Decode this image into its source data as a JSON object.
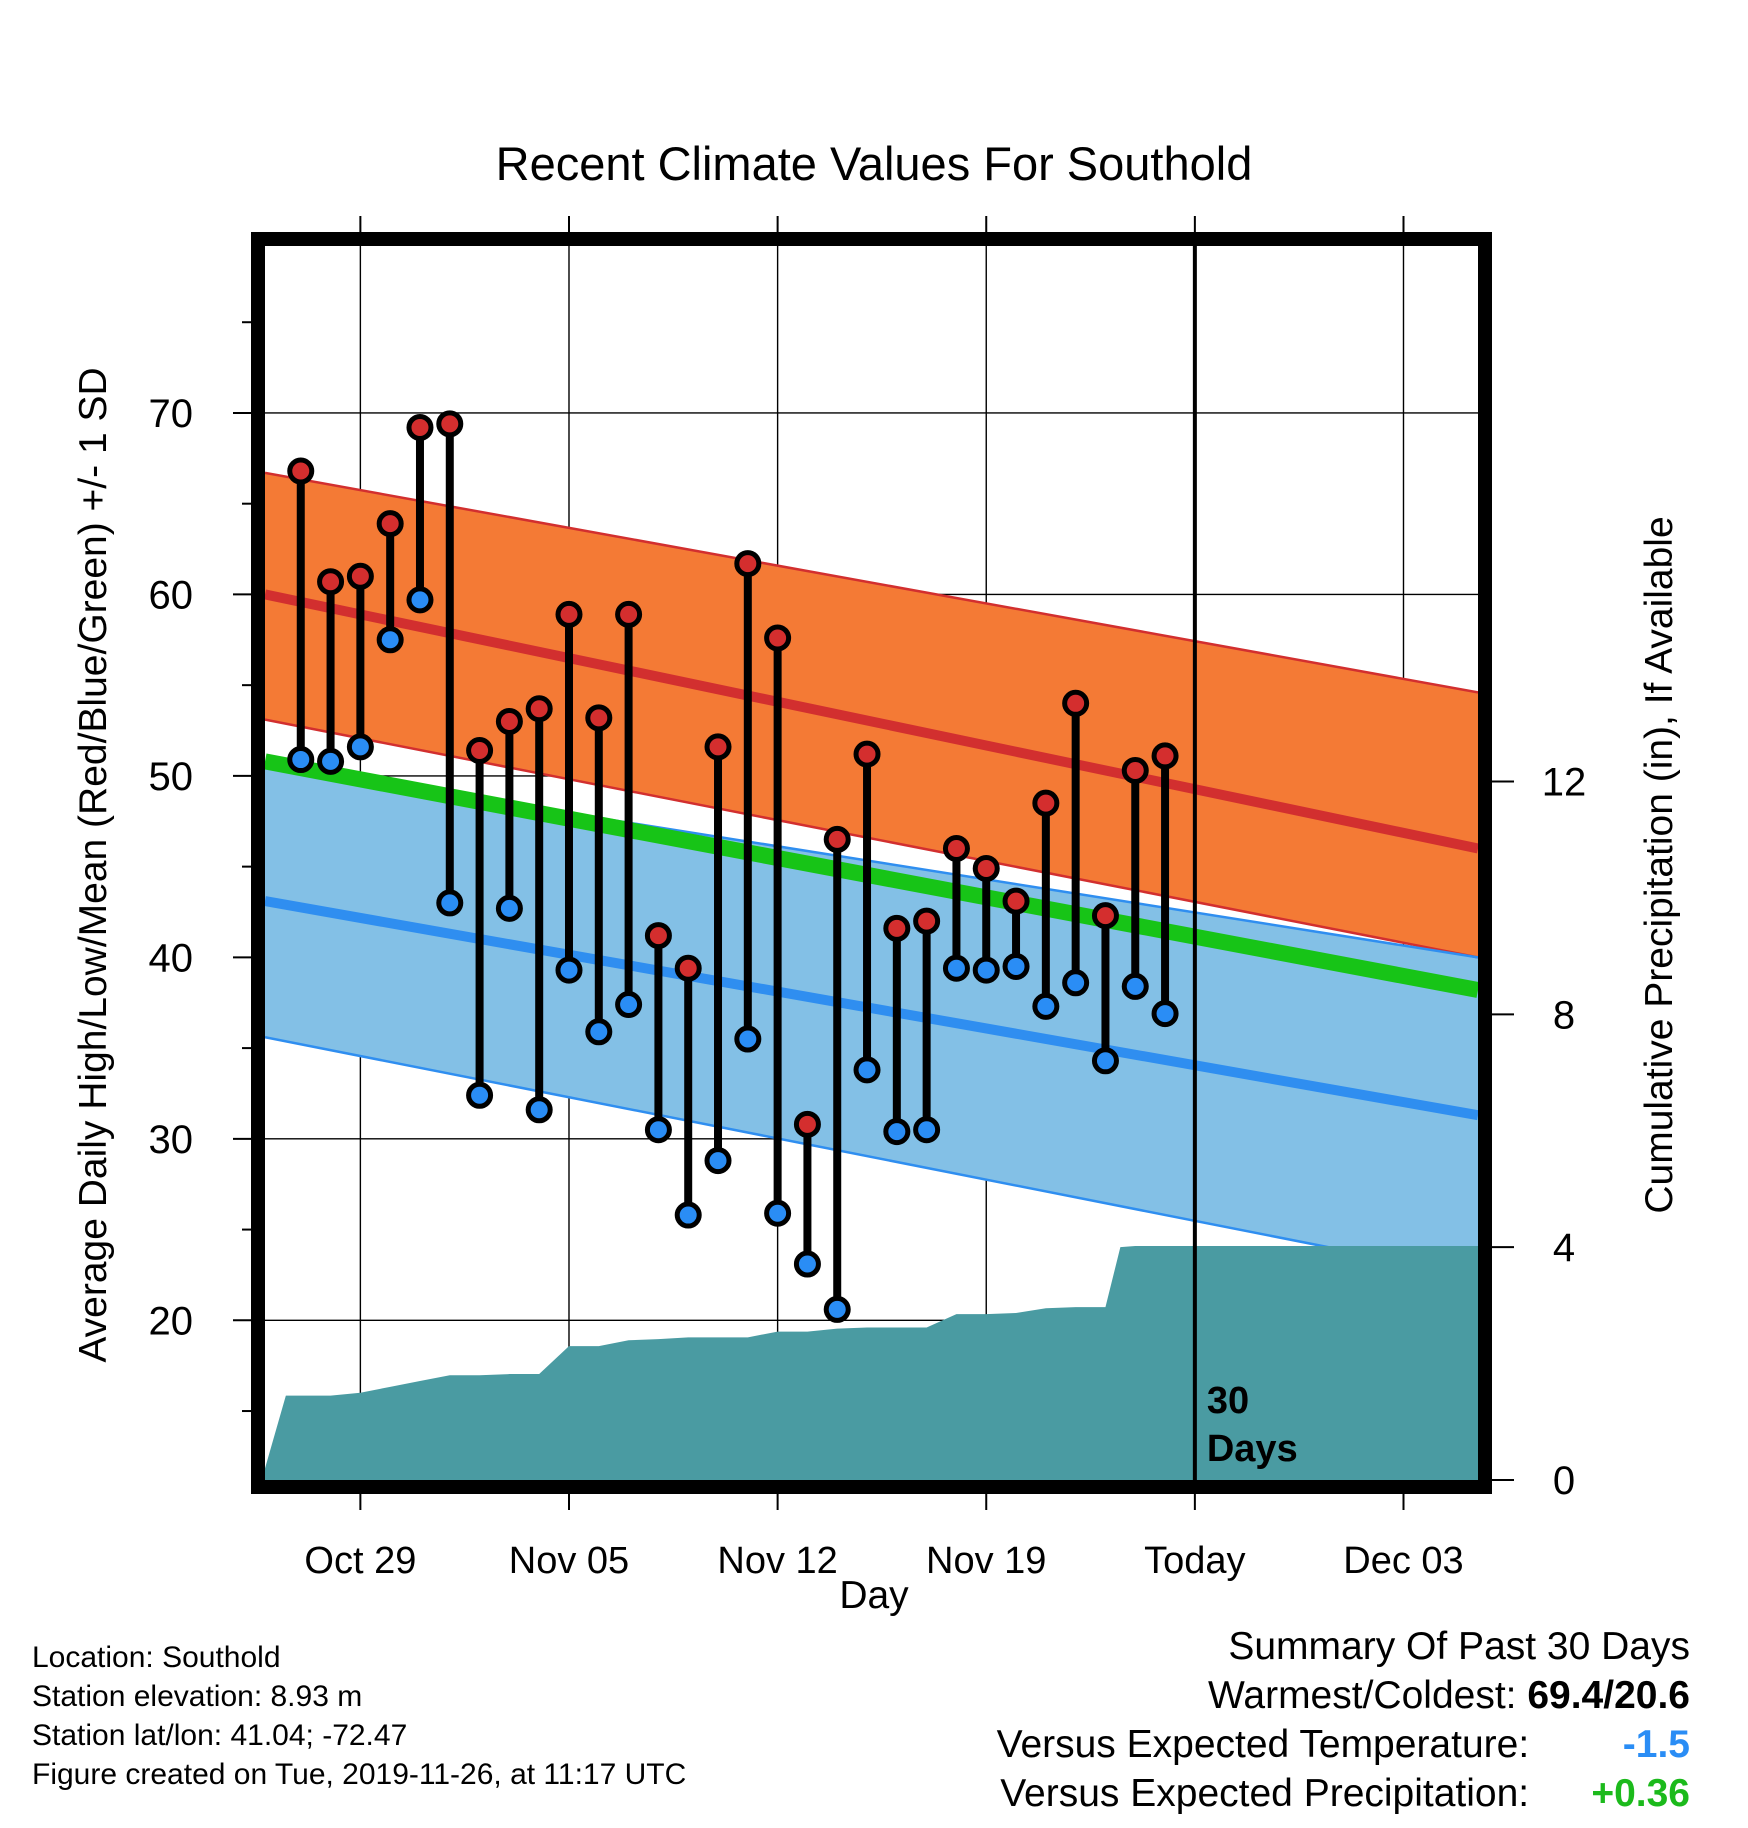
{
  "chart_data": {
    "type": "line",
    "title": "Recent Climate Values For Southold",
    "xlabel": "Day",
    "ylabel": "Average Daily High/Low/Mean (Red/Blue/Green) +/- 1 SD",
    "y2label": "Cumulative Precipitation (in), If Available",
    "x_ticks": [
      "Oct 29",
      "Nov 05",
      "Nov 12",
      "Nov 19",
      "Today",
      "Dec 03"
    ],
    "x_tick_days": [
      0,
      7,
      14,
      21,
      28,
      35
    ],
    "xlim": [
      -3.2,
      37.5
    ],
    "ylim": [
      11.2,
      79.2
    ],
    "y_ticks": [
      20,
      30,
      40,
      50,
      60,
      70
    ],
    "y2lim": [
      0,
      21.2
    ],
    "y2_ticks": [
      0,
      4,
      8,
      12
    ],
    "today_day": 28,
    "today_annotation": "30\nDays",
    "series": [
      {
        "name": "High",
        "color": "#d42e2e",
        "days": [
          -2,
          -1,
          0,
          1,
          2,
          3,
          4,
          5,
          6,
          7,
          8,
          9,
          10,
          11,
          12,
          13,
          14,
          15,
          16,
          17,
          18,
          19,
          20,
          21,
          22,
          23,
          24,
          25,
          26,
          27
        ],
        "values": [
          66.8,
          60.7,
          61.0,
          63.9,
          69.2,
          69.4,
          51.4,
          53.0,
          53.7,
          58.9,
          53.2,
          58.9,
          41.2,
          39.4,
          51.6,
          61.7,
          57.6,
          30.8,
          46.5,
          51.2,
          41.6,
          42.0,
          46.0,
          44.9,
          43.1,
          48.5,
          54.0,
          42.3,
          50.3,
          51.1
        ]
      },
      {
        "name": "Low",
        "color": "#2a8df5",
        "days": [
          -2,
          -1,
          0,
          1,
          2,
          3,
          4,
          5,
          6,
          7,
          8,
          9,
          10,
          11,
          12,
          13,
          14,
          15,
          16,
          17,
          18,
          19,
          20,
          21,
          22,
          23,
          24,
          25,
          26,
          27
        ],
        "values": [
          50.9,
          50.8,
          51.6,
          57.5,
          59.7,
          43.0,
          32.4,
          42.7,
          31.6,
          39.3,
          35.9,
          37.4,
          30.5,
          25.8,
          28.8,
          35.5,
          25.9,
          23.1,
          20.6,
          33.8,
          30.4,
          30.5,
          39.4,
          39.3,
          39.5,
          37.3,
          38.6,
          34.3,
          38.4,
          36.9
        ]
      }
    ],
    "normal_high": {
      "color": "#d22f2f",
      "days": [
        -3.2,
        37.5
      ],
      "mean": [
        60.0,
        46.0
      ],
      "minus_sd": [
        53.1,
        40.0
      ],
      "plus_sd": [
        66.7,
        54.6
      ]
    },
    "normal_low": {
      "color": "#2f8ef0",
      "days": [
        -3.2,
        37.5
      ],
      "mean": [
        43.1,
        31.3
      ],
      "minus_sd": [
        35.6,
        22.4
      ],
      "plus_sd": [
        50.6,
        40.0
      ]
    },
    "normal_mean": {
      "color": "#17c417",
      "days": [
        -3.2,
        37.5
      ],
      "values": [
        50.8,
        38.2
      ]
    },
    "precipitation": {
      "color": "#4a9ba2",
      "days": [
        -3.2,
        -2.5,
        -1,
        0,
        1,
        2,
        3,
        4,
        5,
        6,
        7,
        8,
        9,
        10,
        11,
        12,
        13,
        14,
        15,
        16,
        17,
        18,
        19,
        20,
        21,
        22,
        23,
        24,
        25,
        25.5,
        26,
        27,
        28,
        29,
        37.5
      ],
      "values": [
        0.2,
        1.45,
        1.45,
        1.5,
        1.6,
        1.7,
        1.8,
        1.8,
        1.82,
        1.82,
        2.3,
        2.3,
        2.4,
        2.42,
        2.45,
        2.45,
        2.45,
        2.55,
        2.55,
        2.6,
        2.62,
        2.62,
        2.62,
        2.85,
        2.85,
        2.87,
        2.95,
        2.97,
        2.97,
        4.0,
        4.02,
        4.02,
        4.02,
        4.02,
        4.02
      ]
    }
  },
  "station": {
    "location": "Location: Southold",
    "elevation": "Station elevation: 8.93 m",
    "latlon": "Station lat/lon: 41.04; -72.47",
    "created": "Figure created on Tue, 2019-11-26, at 11:17 UTC"
  },
  "summary": {
    "title": "Summary Of Past 30 Days",
    "warmest_label": "Warmest/Coldest:",
    "warmest_value": "69.4/20.6",
    "temp_label": "Versus Expected Temperature:",
    "temp_value": "-1.5",
    "temp_color": "#2a8df5",
    "precip_label": "Versus Expected Precipitation:",
    "precip_value": "+0.36",
    "precip_color": "#1cba1c"
  }
}
